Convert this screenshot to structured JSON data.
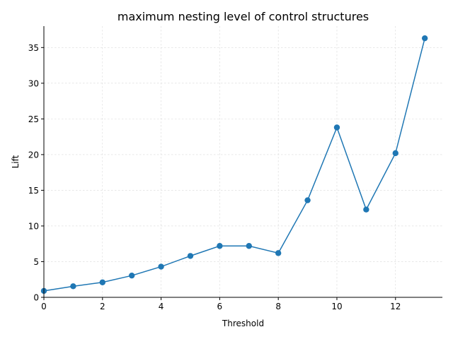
{
  "chart_data": {
    "type": "line",
    "title": "maximum nesting level of control structures",
    "xlabel": "Threshold",
    "ylabel": "Lift",
    "x": [
      0,
      1,
      2,
      3,
      4,
      5,
      6,
      7,
      8,
      9,
      10,
      11,
      12,
      13
    ],
    "series": [
      {
        "values": [
          0.9,
          1.55,
          2.1,
          3.05,
          4.3,
          5.8,
          7.2,
          7.2,
          6.2,
          13.6,
          23.8,
          12.3,
          20.2,
          36.3
        ],
        "color": "#1f77b4"
      }
    ],
    "xlim": [
      0,
      13.6
    ],
    "ylim": [
      0,
      38
    ],
    "xticks": [
      0,
      2,
      4,
      6,
      8,
      10,
      12
    ],
    "yticks": [
      0,
      5,
      10,
      15,
      20,
      25,
      30,
      35
    ],
    "grid": true,
    "markers": "circle"
  }
}
